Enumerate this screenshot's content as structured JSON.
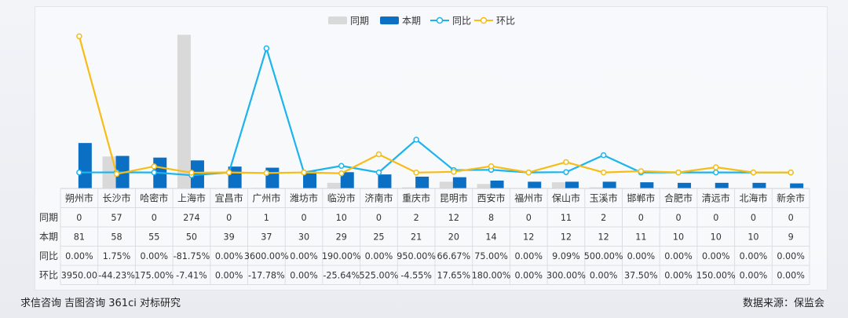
{
  "chart_data": {
    "type": "bar",
    "legend_position": "top-center",
    "series": [
      {
        "name": "同期",
        "kind": "bar",
        "color": "#d9d9d9",
        "values": [
          0,
          57,
          0,
          274,
          0,
          1,
          0,
          10,
          0,
          2,
          12,
          8,
          0,
          11,
          2,
          0,
          0,
          0,
          0,
          0
        ]
      },
      {
        "name": "本期",
        "kind": "bar",
        "color": "#0b6fc4",
        "values": [
          81,
          58,
          55,
          50,
          39,
          37,
          30,
          29,
          25,
          21,
          20,
          14,
          12,
          12,
          12,
          11,
          10,
          10,
          10,
          9
        ]
      },
      {
        "name": "同比",
        "kind": "line",
        "color": "#1cb4ec",
        "values": [
          0.0,
          1.75,
          0.0,
          -81.75,
          0.0,
          3600.0,
          0.0,
          190.0,
          0.0,
          950.0,
          66.67,
          75.0,
          0.0,
          9.09,
          500.0,
          0.0,
          0.0,
          0.0,
          0.0,
          0.0
        ],
        "labels": [
          "0.00%",
          "1.75%",
          "0.00%",
          "-81.75%",
          "0.00%",
          "3600.00%",
          "0.00%",
          "190.00%",
          "0.00%",
          "950.00%",
          "66.67%",
          "75.00%",
          "0.00%",
          "9.09%",
          "500.00%",
          "0.00%",
          "0.00%",
          "0.00%",
          "0.00%",
          "0.00%"
        ]
      },
      {
        "name": "环比",
        "kind": "line",
        "color": "#f7bd16",
        "values": [
          3950.0,
          -44.23,
          175.0,
          -7.41,
          0.0,
          -17.78,
          0.0,
          -25.64,
          525.0,
          -4.55,
          17.65,
          180.0,
          0.0,
          300.0,
          0.0,
          37.5,
          0.0,
          150.0,
          0.0,
          0.0
        ],
        "labels": [
          "3950.00",
          "-44.23%",
          "175.00%",
          "-7.41%",
          "0.00%",
          "-17.78%",
          "0.00%",
          "-25.64%",
          "525.00%",
          "-4.55%",
          "17.65%",
          "180.00%",
          "0.00%",
          "300.00%",
          "0.00%",
          "37.50%",
          "0.00%",
          "150.00%",
          "0.00%",
          "0.00%"
        ]
      }
    ],
    "categories": [
      "朔州市",
      "长沙市",
      "哈密市",
      "上海市",
      "宜昌市",
      "广州市",
      "潍坊市",
      "临汾市",
      "济南市",
      "重庆市",
      "昆明市",
      "西安市",
      "福州市",
      "保山市",
      "玉溪市",
      "邯郸市",
      "合肥市",
      "清远市",
      "北海市",
      "新余市"
    ],
    "table_rows": [
      {
        "label": "同期",
        "series": 0
      },
      {
        "label": "本期",
        "series": 1
      },
      {
        "label": "同比",
        "series": 2
      },
      {
        "label": "环比",
        "series": 3
      }
    ],
    "bar_ylim": [
      0,
      280
    ],
    "line_ylim": [
      -100,
      4000
    ]
  },
  "footer": {
    "left": "求信咨询  吉图咨询  361ci  对标研究",
    "right": "数据来源：保监会"
  }
}
